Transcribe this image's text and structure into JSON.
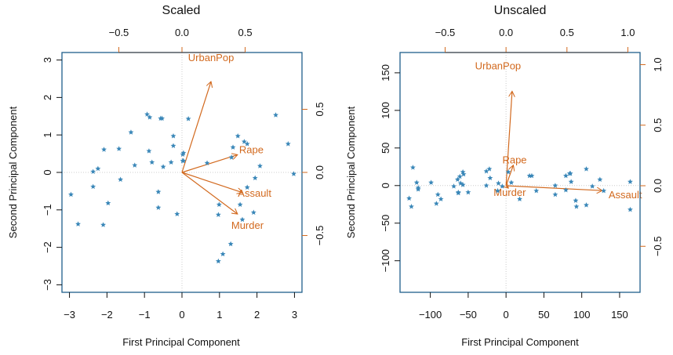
{
  "colors": {
    "points": "#3a87b8",
    "arrows": "#d2691e",
    "frame": "#1f5f8b",
    "axis": "#111111",
    "grid": "#cccccc"
  },
  "chart_data": [
    {
      "type": "scatter",
      "subtype": "biplot",
      "title": "Scaled",
      "xlabel": "First Principal Component",
      "ylabel": "Second Principal Component",
      "xlim": [
        -3.2,
        3.2
      ],
      "ylim": [
        -3.2,
        3.2
      ],
      "xticks": [
        -3,
        -2,
        -1,
        0,
        1,
        2,
        3
      ],
      "xtick_labels": [
        "−3",
        "−2",
        "−1",
        "0",
        "1",
        "2",
        "3"
      ],
      "yticks": [
        -3,
        -2,
        -1,
        0,
        1,
        2,
        3
      ],
      "ytick_labels": [
        "−3",
        "−2",
        "−1",
        "0",
        "1",
        "2",
        "3"
      ],
      "top_ticks": [
        -0.5,
        0.0,
        0.5
      ],
      "top_tick_labels": [
        "−0.5",
        "0.0",
        "0.5"
      ],
      "right_ticks": [
        -0.5,
        0.0,
        0.5
      ],
      "right_tick_labels": [
        "−0.5",
        "0.0",
        "0.5"
      ],
      "loading_lim": [
        -0.95,
        0.95
      ],
      "point_marker": "*",
      "points": [
        [
          -0.93,
          1.55
        ],
        [
          -0.86,
          1.47
        ],
        [
          -0.57,
          1.44
        ],
        [
          -0.53,
          1.44
        ],
        [
          -1.36,
          1.07
        ],
        [
          -0.23,
          0.97
        ],
        [
          -0.23,
          0.71
        ],
        [
          -2.08,
          0.61
        ],
        [
          -1.68,
          0.63
        ],
        [
          -0.88,
          0.57
        ],
        [
          -0.8,
          0.27
        ],
        [
          -1.26,
          0.19
        ],
        [
          -0.5,
          0.15
        ],
        [
          -0.29,
          0.27
        ],
        [
          0.02,
          0.48
        ],
        [
          0.02,
          0.31
        ],
        [
          -2.37,
          0.02
        ],
        [
          -2.24,
          0.1
        ],
        [
          0.17,
          1.43
        ],
        [
          -1.64,
          -0.19
        ],
        [
          -2.37,
          -0.38
        ],
        [
          -2.96,
          -0.59
        ],
        [
          -0.63,
          -0.52
        ],
        [
          -1.97,
          -0.82
        ],
        [
          -0.63,
          -0.94
        ],
        [
          -0.13,
          -1.11
        ],
        [
          -2.77,
          -1.38
        ],
        [
          -2.1,
          -1.4
        ],
        [
          2.5,
          1.53
        ],
        [
          1.49,
          0.97
        ],
        [
          1.66,
          0.82
        ],
        [
          1.74,
          0.76
        ],
        [
          1.36,
          0.67
        ],
        [
          2.83,
          0.76
        ],
        [
          0.04,
          0.52
        ],
        [
          0.04,
          0.31
        ],
        [
          0.67,
          0.25
        ],
        [
          1.32,
          0.4
        ],
        [
          2.08,
          0.17
        ],
        [
          2.98,
          -0.04
        ],
        [
          1.95,
          -0.15
        ],
        [
          1.74,
          -0.4
        ],
        [
          0.99,
          -0.86
        ],
        [
          1.55,
          -0.86
        ],
        [
          0.97,
          -1.13
        ],
        [
          1.91,
          -1.07
        ],
        [
          1.61,
          -1.26
        ],
        [
          1.3,
          -1.91
        ],
        [
          1.09,
          -2.18
        ],
        [
          0.97,
          -2.37
        ]
      ],
      "vectors": [
        {
          "name": "UrbanPop",
          "x": 0.23,
          "y": 0.72
        },
        {
          "name": "Rape",
          "x": 0.44,
          "y": 0.14
        },
        {
          "name": "Assault",
          "x": 0.48,
          "y": -0.16
        },
        {
          "name": "Murder",
          "x": 0.44,
          "y": -0.33
        }
      ]
    },
    {
      "type": "scatter",
      "subtype": "biplot",
      "title": "Unscaled",
      "xlabel": "First Principal Component",
      "ylabel": "Second Principal Component",
      "xlim": [
        -140,
        177
      ],
      "ylim": [
        -142,
        177
      ],
      "xticks": [
        -100,
        -50,
        0,
        50,
        100,
        150
      ],
      "xtick_labels": [
        "−100",
        "−50",
        "0",
        "50",
        "100",
        "150"
      ],
      "yticks": [
        -100,
        -50,
        0,
        50,
        100,
        150
      ],
      "ytick_labels": [
        "−100",
        "−50",
        "0",
        "50",
        "100",
        "150"
      ],
      "top_ticks": [
        -0.5,
        0.0,
        0.5,
        1.0
      ],
      "top_tick_labels": [
        "−0.5",
        "0.0",
        "0.5",
        "1.0"
      ],
      "right_ticks": [
        -0.5,
        0.0,
        0.5,
        1.0
      ],
      "right_tick_labels": [
        "−0.5",
        "0.0",
        "0.5",
        "1.0"
      ],
      "loading_xlim": [
        -0.87,
        1.1
      ],
      "loading_ylim": [
        -0.88,
        1.1
      ],
      "point_marker": "*",
      "points": [
        [
          -123,
          24
        ],
        [
          -118,
          4
        ],
        [
          -116,
          -3
        ],
        [
          -116,
          -5
        ],
        [
          -99,
          4
        ],
        [
          -128,
          -17
        ],
        [
          -125,
          -28
        ],
        [
          -90,
          -12
        ],
        [
          -86,
          -18
        ],
        [
          -92,
          -24
        ],
        [
          -69,
          -1
        ],
        [
          -64,
          8
        ],
        [
          -61,
          12
        ],
        [
          -56,
          15
        ],
        [
          -57,
          18
        ],
        [
          -57,
          1
        ],
        [
          -60,
          3
        ],
        [
          -63,
          -10
        ],
        [
          -63,
          -9
        ],
        [
          -50,
          -9
        ],
        [
          -26,
          19
        ],
        [
          -22,
          22
        ],
        [
          -26,
          0
        ],
        [
          -21,
          10
        ],
        [
          -10,
          3
        ],
        [
          -11,
          -7
        ],
        [
          -5,
          -1
        ],
        [
          3,
          18
        ],
        [
          7,
          4
        ],
        [
          18,
          -18
        ],
        [
          31,
          13
        ],
        [
          34,
          13
        ],
        [
          40,
          -7
        ],
        [
          65,
          0
        ],
        [
          65,
          -12
        ],
        [
          79,
          -6
        ],
        [
          79,
          13
        ],
        [
          84,
          16
        ],
        [
          85,
          16
        ],
        [
          86,
          5
        ],
        [
          93,
          -28
        ],
        [
          92,
          -20
        ],
        [
          106,
          22
        ],
        [
          106,
          -26
        ],
        [
          114,
          -1
        ],
        [
          124,
          8
        ],
        [
          129,
          -7
        ],
        [
          164,
          5
        ],
        [
          164,
          -32
        ]
      ],
      "vectors": [
        {
          "name": "UrbanPop",
          "x": 0.05,
          "y": 0.78
        },
        {
          "name": "Rape",
          "x": 0.06,
          "y": 0.17
        },
        {
          "name": "Assault",
          "x": 0.79,
          "y": -0.04
        },
        {
          "name": "Murder",
          "x": 0.02,
          "y": -0.02
        }
      ]
    }
  ]
}
